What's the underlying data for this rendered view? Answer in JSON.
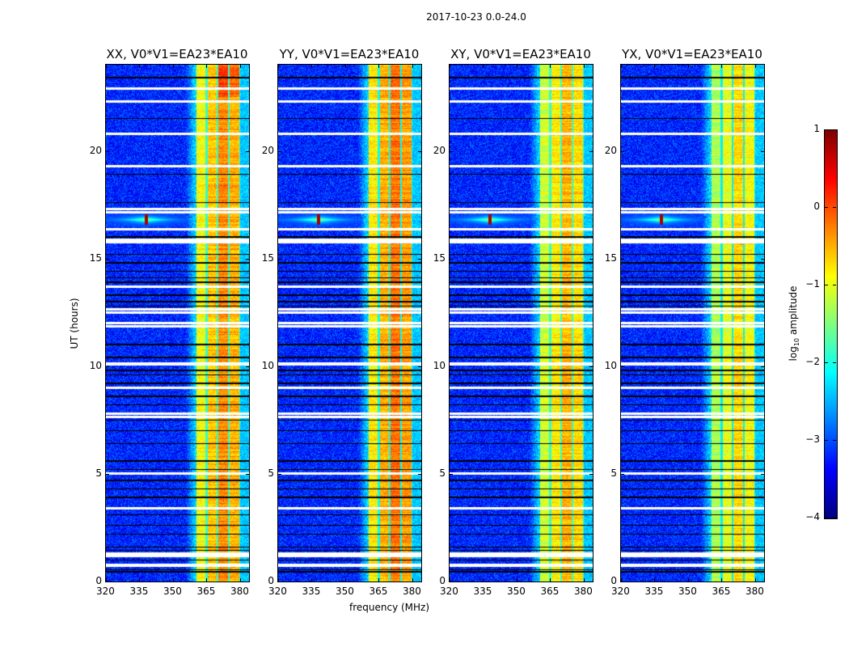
{
  "chart_data": {
    "type": "heatmap",
    "title": "2017-10-23 0.0-24.0",
    "xlabel": "frequency (MHz)",
    "ylabel": "UT (hours)",
    "xlim": [
      320,
      384
    ],
    "ylim": [
      0,
      24
    ],
    "xticks": [
      "320",
      "335",
      "350",
      "365",
      "380"
    ],
    "yticks": [
      "0",
      "5",
      "10",
      "15",
      "20"
    ],
    "colormap": "jet",
    "colorbar": {
      "label_prefix": "log",
      "label_sub": "10",
      "label_suffix": " amplitude",
      "range": [
        -4,
        1
      ],
      "ticks": [
        "1",
        "0",
        "−1",
        "−2",
        "−3",
        "−4"
      ]
    },
    "panels": [
      {
        "title": "XX, V0*V1=EA23*EA10",
        "band_level": -0.55,
        "edge_level": -1.3
      },
      {
        "title": "YY, V0*V1=EA23*EA10",
        "band_level": -0.45,
        "edge_level": -1.5
      },
      {
        "title": "XY, V0*V1=EA23*EA10",
        "band_level": -0.75,
        "edge_level": -1.3
      },
      {
        "title": "YX, V0*V1=EA23*EA10",
        "band_level": -0.95,
        "edge_level": -1.6
      }
    ],
    "features": {
      "background_level": -3.2,
      "band_mhz": [
        360.5,
        380
      ],
      "subband_edges_mhz": [
        365,
        370,
        375,
        380
      ],
      "rfi_spike": {
        "freq_mhz": 338,
        "hour": 16.8,
        "level": 0.8
      },
      "flagged_white_hours": [
        22.9,
        22.3,
        20.8,
        19.3,
        17.3,
        17.15,
        16.35,
        15.85,
        15.75,
        13.7,
        12.65,
        12.5,
        12.0,
        11.85,
        10.1,
        9.0,
        7.8,
        7.65,
        5.0,
        3.4,
        1.3,
        1.2,
        0.75
      ],
      "flagged_black_hours": [
        23.4,
        21.5,
        18.9,
        17.6,
        16.0,
        15.2,
        14.8,
        14.4,
        14.1,
        13.9,
        13.3,
        13.0,
        12.8,
        11.0,
        10.4,
        9.8,
        9.6,
        9.2,
        8.6,
        8.2,
        7.5,
        7.0,
        6.4,
        5.6,
        5.2,
        4.7,
        4.3,
        3.9,
        3.1,
        2.6,
        2.2,
        1.6,
        1.45,
        1.0,
        0.55,
        0.45
      ]
    }
  }
}
